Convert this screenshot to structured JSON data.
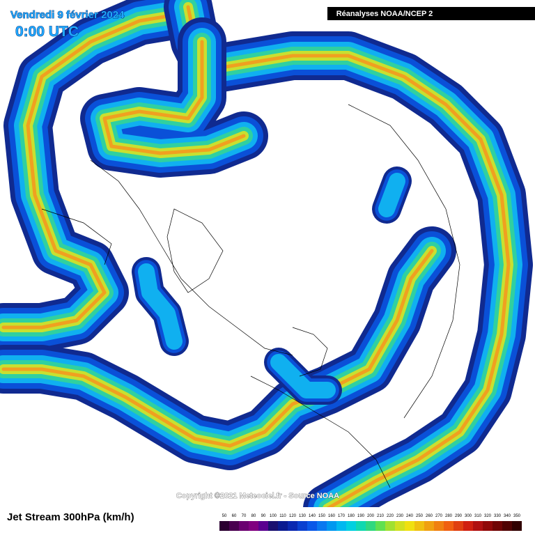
{
  "header": {
    "date": "Vendredi 9 février 2024",
    "time": "0:00 UTC",
    "source_badge": "Réanalyses NOAA/NCEP 2"
  },
  "footer": {
    "copyright": "Copyright ©2021 Meteociel.fr - Source NOAA",
    "title": "Jet Stream 300hPa (km/h)"
  },
  "legend": {
    "labels": [
      50,
      60,
      70,
      80,
      90,
      100,
      110,
      120,
      130,
      140,
      150,
      160,
      170,
      180,
      190,
      200,
      210,
      220,
      230,
      240,
      250,
      260,
      270,
      280,
      290,
      300,
      310,
      320,
      330,
      340,
      350
    ],
    "colors": [
      "#2a0030",
      "#4a0050",
      "#6a0070",
      "#800080",
      "#5a0090",
      "#1a1070",
      "#0a1a90",
      "#0a28b0",
      "#0a40d0",
      "#0a58e8",
      "#0a78f0",
      "#0098f0",
      "#00b8f0",
      "#00d0e0",
      "#10d8b0",
      "#30d880",
      "#60e050",
      "#a0e030",
      "#d0e020",
      "#f0e010",
      "#f0c010",
      "#f0a010",
      "#f08010",
      "#f06010",
      "#e04010",
      "#d02010",
      "#b01010",
      "#900808",
      "#700404",
      "#500202",
      "#300000"
    ]
  }
}
